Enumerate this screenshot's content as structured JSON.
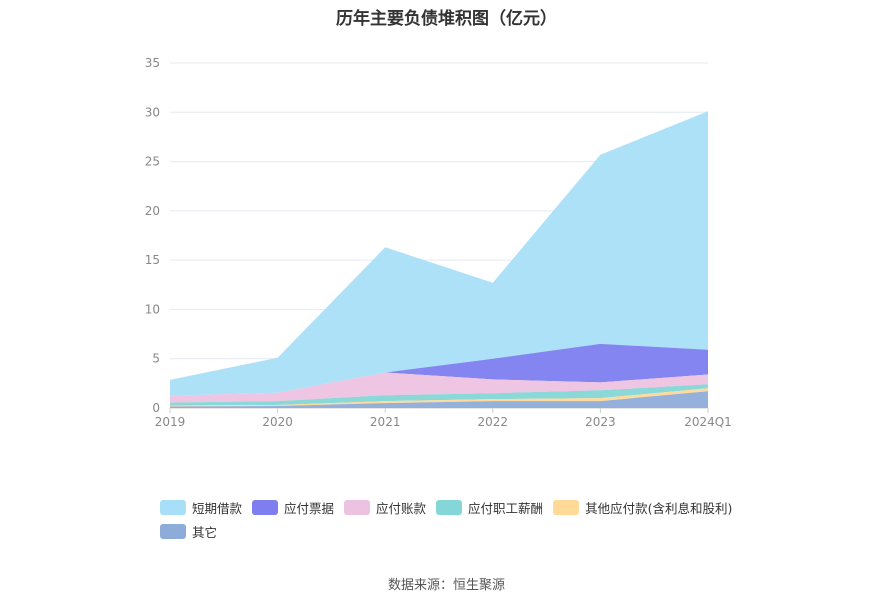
{
  "title": "历年主要负债堆积图（亿元）",
  "source": "数据来源：恒生聚源",
  "chart_data": {
    "type": "area",
    "stacked": true,
    "categories": [
      "2019",
      "2020",
      "2021",
      "2022",
      "2023",
      "2024Q1"
    ],
    "ylim": [
      0,
      35
    ],
    "yticks": [
      0,
      5,
      10,
      15,
      20,
      25,
      30,
      35
    ],
    "grid": true,
    "legend_position": "bottom",
    "series": [
      {
        "name": "其它",
        "color": "#8eacd9",
        "values": [
          0.15,
          0.2,
          0.5,
          0.7,
          0.7,
          1.7
        ]
      },
      {
        "name": "其他应付款(含利息和股利)",
        "color": "#ffd996",
        "values": [
          0.1,
          0.1,
          0.2,
          0.2,
          0.3,
          0.3
        ]
      },
      {
        "name": "应付职工薪酬",
        "color": "#85d6d6",
        "values": [
          0.3,
          0.4,
          0.6,
          0.6,
          0.8,
          0.4
        ]
      },
      {
        "name": "应付账款",
        "color": "#edc2e0",
        "values": [
          0.7,
          0.85,
          2.3,
          1.4,
          0.8,
          1.0
        ]
      },
      {
        "name": "应付票据",
        "color": "#7e7ef0",
        "values": [
          0.0,
          0.0,
          0.0,
          2.1,
          3.9,
          2.5
        ]
      },
      {
        "name": "短期借款",
        "color": "#a8dff8",
        "values": [
          1.6,
          3.55,
          12.7,
          7.7,
          19.2,
          24.2
        ]
      }
    ],
    "legend_order": [
      "短期借款",
      "应付票据",
      "应付账款",
      "应付职工薪酬",
      "其他应付款(含利息和股利)",
      "其它"
    ]
  }
}
